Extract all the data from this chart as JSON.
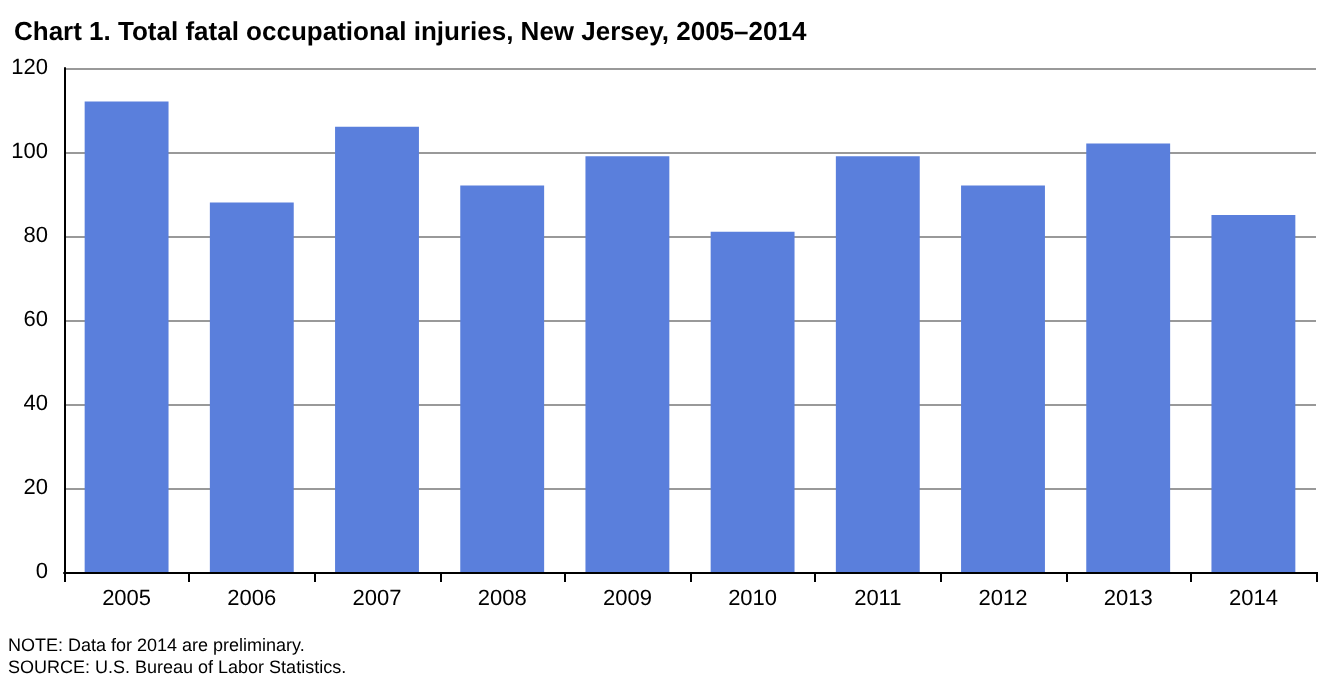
{
  "chart_data": {
    "type": "bar",
    "title": "Chart 1. Total fatal occupational injuries, New Jersey, 2005–2014",
    "categories": [
      "2005",
      "2006",
      "2007",
      "2008",
      "2009",
      "2010",
      "2011",
      "2012",
      "2013",
      "2014"
    ],
    "values": [
      112,
      88,
      106,
      92,
      99,
      81,
      99,
      92,
      102,
      85
    ],
    "color": "#5a7fdc",
    "ylim": [
      0,
      120
    ],
    "yticks": [
      0,
      20,
      40,
      60,
      80,
      100,
      120
    ],
    "grid": "y",
    "annotations": [
      "NOTE: Data for 2014 are preliminary.",
      "SOURCE: U.S. Bureau of Labor Statistics."
    ]
  }
}
